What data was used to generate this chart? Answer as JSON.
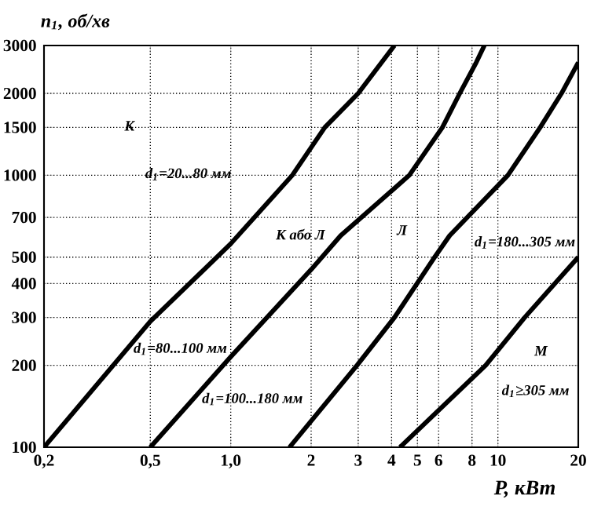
{
  "chart_data": {
    "type": "line",
    "xlabel": "P, кВт",
    "ylabel": "n$_{1}$, об/хв",
    "log": "xy",
    "grid": true,
    "marker": "none",
    "line_style": "solid",
    "xlim": [
      0.2,
      20
    ],
    "ylim": [
      100,
      3000
    ],
    "xticks": [
      {
        "value": 0.2,
        "label": "0,2"
      },
      {
        "value": 0.5,
        "label": "0,5"
      },
      {
        "value": 1,
        "label": "1,0"
      },
      2,
      3,
      4,
      5,
      6,
      8,
      10,
      20
    ],
    "yticks": [
      100,
      200,
      300,
      400,
      500,
      700,
      1000,
      1500,
      2000,
      3000
    ],
    "series": [
      {
        "color": "#000000",
        "x": [
          0.2,
          0.5,
          1.0,
          1.7,
          2.25,
          3.0,
          4.1
        ],
        "values": [
          100,
          290,
          560,
          1000,
          1500,
          2000,
          3000
        ]
      },
      {
        "color": "#000000",
        "x": [
          0.5,
          1.0,
          2.0,
          2.58,
          4.66,
          6.2,
          7.2,
          8.3,
          8.9
        ],
        "values": [
          100,
          215,
          450,
          600,
          1000,
          1500,
          2000,
          2600,
          3000
        ]
      },
      {
        "color": "#000000",
        "x": [
          1.66,
          2.97,
          4.1,
          5.8,
          6.6,
          10.9,
          14.4,
          17.3,
          20
        ],
        "values": [
          100,
          200,
          300,
          500,
          600,
          1000,
          1500,
          2000,
          2600
        ]
      },
      {
        "color": "#000000",
        "x": [
          4.3,
          9.0,
          12.6,
          20
        ],
        "values": [
          100,
          200,
          300,
          500
        ]
      }
    ],
    "annotations": [
      "К",
      "d$_{1}$=20...80 мм",
      "К або Л",
      "Л",
      "d$_{1}$=80...100 мм",
      "d$_{1}$=100...180 мм",
      "d$_{1}$=180...305 мм",
      "М",
      "d$_{1}$≥305 мм"
    ]
  }
}
